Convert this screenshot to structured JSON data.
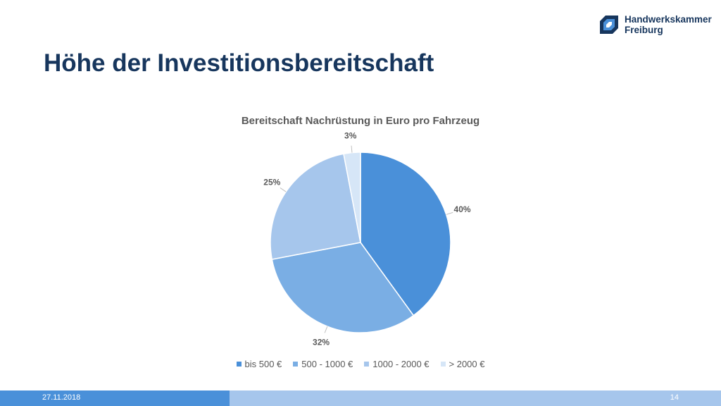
{
  "header": {
    "title": "Höhe der Investitionsbereitschaft",
    "logo": {
      "line1": "Handwerkskammer",
      "line2": "Freiburg",
      "icon": "handwerkskammer-logo-icon"
    }
  },
  "chart_data": {
    "type": "pie",
    "title": "Bereitschaft Nachrüstung in Euro pro Fahrzeug",
    "categories": [
      "bis 500 €",
      "500 - 1000 €",
      "1000 - 2000 €",
      "> 2000 €"
    ],
    "values": [
      40,
      32,
      25,
      3
    ],
    "data_labels": [
      "40%",
      "32%",
      "25%",
      "3%"
    ],
    "colors": [
      "#4a90d9",
      "#7aaee4",
      "#a6c6ec",
      "#d6e6f7"
    ],
    "legend_position": "bottom"
  },
  "footer": {
    "date": "27.11.2018",
    "page": "14"
  }
}
